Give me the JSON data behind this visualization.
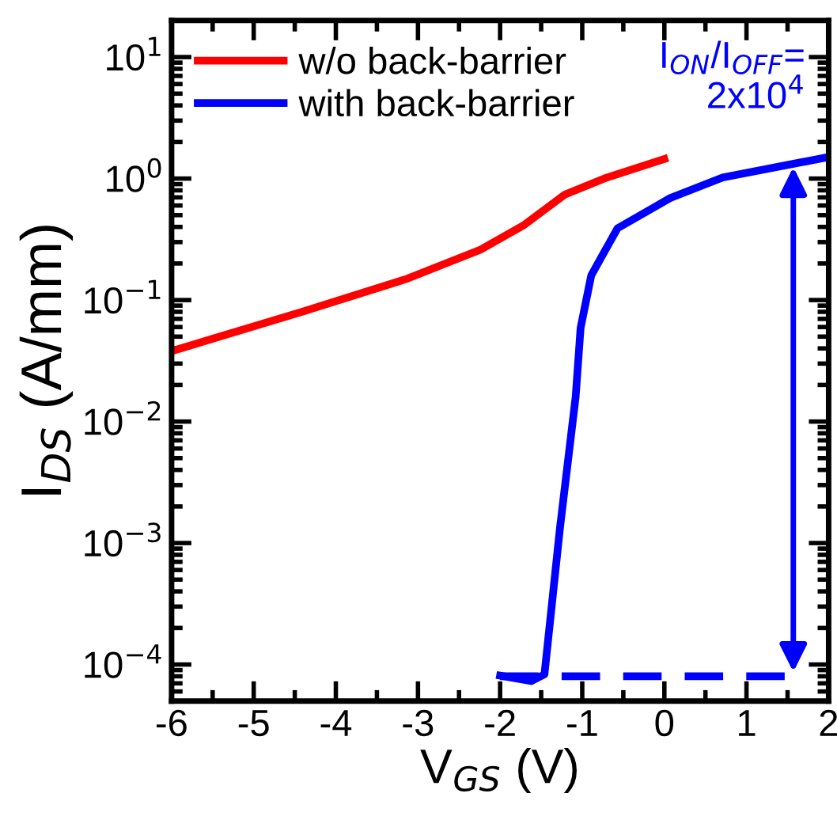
{
  "chart_data": {
    "type": "line",
    "xlabel": "V$_{GS}$ (V)",
    "ylabel": "I$_{DS}$ (A/mm)",
    "log": "y",
    "xlim": [
      -6,
      2
    ],
    "xticks": [
      -6,
      -5,
      -4,
      -3,
      -2,
      -1,
      0,
      1,
      2
    ],
    "ylim": [
      5e-05,
      20
    ],
    "yticks": [
      {
        "value": 0.0001,
        "label": "10$^{−4}$"
      },
      {
        "value": 0.001,
        "label": "10$^{−3}$"
      },
      {
        "value": 0.01,
        "label": "10$^{−2}$"
      },
      {
        "value": 0.1,
        "label": "10$^{−1}$"
      },
      {
        "value": 1,
        "label": "10$^{0}$"
      },
      {
        "value": 10,
        "label": "10$^{1}$"
      }
    ],
    "grid": false,
    "legend": "top left",
    "series": [
      {
        "name": "w/o back-barrier",
        "color": "#ff0000",
        "line_style": "solid",
        "x": [
          -6,
          -4.41,
          -3.13,
          -2.24,
          -1.72,
          -1.21,
          -0.7,
          0
        ],
        "values": [
          0.038,
          0.08,
          0.15,
          0.26,
          0.41,
          0.74,
          1.02,
          1.45
        ]
      },
      {
        "name": "with back-barrier",
        "color": "#0000ff",
        "line_style": "solid",
        "x": [
          -2.0,
          -1.62,
          -1.46,
          -1.27,
          -1.08,
          -1.02,
          -0.89,
          -0.57,
          0.07,
          0.71,
          1.99
        ],
        "values": [
          8.1e-05,
          7.3e-05,
          8.3e-05,
          0.00135,
          0.016,
          0.059,
          0.16,
          0.39,
          0.69,
          1.02,
          1.5
        ]
      },
      {
        "color": "#0000ff",
        "line_style": "dashed",
        "x": [
          -2.0,
          1.5
        ],
        "values": [
          8e-05,
          8e-05
        ]
      }
    ],
    "annotations": [
      {
        "text": "I$_{ON}$/I$_{OFF}$=\n2x10$^{4}$",
        "x": 1.57,
        "y": 1.35
      }
    ]
  }
}
